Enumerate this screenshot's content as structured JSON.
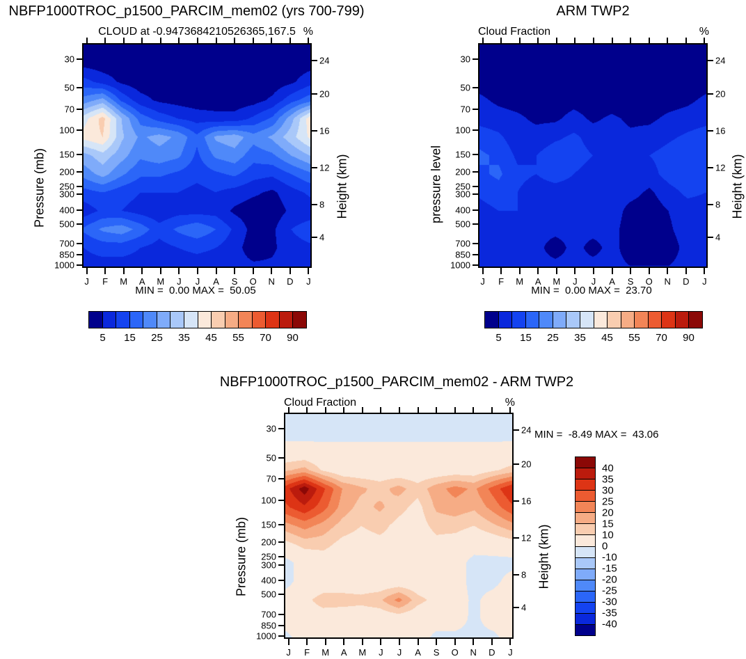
{
  "background": "#ffffff",
  "palette": [
    "#00008C",
    "#0A28DC",
    "#1443F0",
    "#2B66F8",
    "#4F89F9",
    "#7FABFA",
    "#A9C8F9",
    "#D6E5F7",
    "#FBE9DB",
    "#F9CDB0",
    "#F6AC85",
    "#F28557",
    "#EC5B31",
    "#DD3415",
    "#BB1B0D",
    "#8B0806"
  ],
  "axes": {
    "months": [
      "J",
      "F",
      "M",
      "A",
      "M",
      "J",
      "J",
      "A",
      "S",
      "O",
      "N",
      "D",
      "J"
    ],
    "pressure_ticks": [
      [
        "30",
        0.065
      ],
      [
        "50",
        0.195
      ],
      [
        "70",
        0.291
      ],
      [
        "100",
        0.387
      ],
      [
        "150",
        0.495
      ],
      [
        "200",
        0.573
      ],
      [
        "250",
        0.638
      ],
      [
        "300",
        0.675
      ],
      [
        "400",
        0.746
      ],
      [
        "500",
        0.808
      ],
      [
        "700",
        0.898
      ],
      [
        "850",
        0.947
      ],
      [
        "1000",
        0.995
      ]
    ],
    "height_ticks": [
      [
        "24",
        0.071
      ],
      [
        "20",
        0.223
      ],
      [
        "16",
        0.39
      ],
      [
        "12",
        0.554
      ],
      [
        "8",
        0.721
      ],
      [
        "4",
        0.867
      ]
    ]
  },
  "chart_data": [
    {
      "type": "heatmap",
      "title": "NBFP1000TROC_p1500_PARCIM_mem02 (yrs 700-799)",
      "subtitle": "CLOUD at -0.9473684210526365,167.5",
      "unit": "%",
      "ylabel_left": "Pressure (mb)",
      "ylabel_right": "Height (km)",
      "minmax": "MIN =  0.00 MAX =  50.05",
      "levels": [
        5,
        10,
        15,
        20,
        25,
        30,
        35,
        40,
        45,
        50,
        55,
        60,
        70,
        80,
        90
      ],
      "colorbar": {
        "orientation": "horizontal",
        "ticks": [
          [
            "5",
            1
          ],
          [
            "15",
            3
          ],
          [
            "25",
            5
          ],
          [
            "35",
            7
          ],
          [
            "45",
            9
          ],
          [
            "55",
            11
          ],
          [
            "70",
            13
          ],
          [
            "90",
            15
          ]
        ]
      },
      "values": [
        [
          2,
          2,
          2,
          2,
          2,
          2,
          2,
          2,
          2,
          2,
          2,
          2,
          2
        ],
        [
          3,
          2,
          2,
          2,
          2,
          2,
          2,
          2,
          2,
          2,
          2,
          2,
          3
        ],
        [
          12,
          8,
          4,
          2,
          2,
          2,
          2,
          2,
          2,
          2,
          2,
          4,
          8
        ],
        [
          22,
          27,
          14,
          7,
          4,
          3,
          2,
          2,
          2,
          3,
          6,
          13,
          18
        ],
        [
          38,
          47,
          30,
          18,
          13,
          10,
          8,
          7,
          7,
          11,
          16,
          28,
          43
        ],
        [
          42,
          45,
          31,
          24,
          27,
          24,
          16,
          26,
          28,
          22,
          26,
          33,
          41
        ],
        [
          28,
          33,
          27,
          21,
          23,
          21,
          14,
          21,
          23,
          17,
          19,
          25,
          30
        ],
        [
          22,
          27,
          21,
          16,
          16,
          14,
          12,
          14,
          16,
          12,
          11,
          15,
          19
        ],
        [
          13,
          15,
          12,
          10,
          10,
          10,
          8,
          10,
          8,
          6,
          4,
          8,
          11
        ],
        [
          7,
          11,
          10,
          8,
          6,
          8,
          8,
          8,
          4,
          2,
          2,
          6,
          7
        ],
        [
          16,
          21,
          23,
          18,
          12,
          16,
          19,
          15,
          9,
          3,
          4,
          10,
          13
        ],
        [
          10,
          12,
          12,
          10,
          8,
          10,
          11,
          10,
          7,
          2,
          4,
          8,
          9
        ],
        [
          8,
          8,
          8,
          8,
          8,
          8,
          8,
          8,
          7,
          6,
          6,
          8,
          8
        ]
      ]
    },
    {
      "type": "heatmap",
      "title": "ARM TWP2",
      "subtitle": "Cloud Fraction",
      "unit": "%",
      "ylabel_left": "pressure level",
      "ylabel_right": "Height (km)",
      "minmax": "MIN =  0.00 MAX =  23.70",
      "levels": [
        5,
        10,
        15,
        20,
        25,
        30,
        35,
        40,
        45,
        50,
        55,
        60,
        70,
        80,
        90
      ],
      "colorbar": {
        "orientation": "horizontal",
        "ticks": [
          [
            "5",
            1
          ],
          [
            "15",
            3
          ],
          [
            "25",
            5
          ],
          [
            "35",
            7
          ],
          [
            "45",
            9
          ],
          [
            "55",
            11
          ],
          [
            "70",
            13
          ],
          [
            "90",
            15
          ]
        ]
      },
      "values": [
        [
          2,
          2,
          2,
          2,
          2,
          2,
          2,
          2,
          2,
          2,
          2,
          2,
          2
        ],
        [
          2,
          2,
          2,
          2,
          2,
          2,
          2,
          2,
          2,
          2,
          2,
          2,
          2
        ],
        [
          3,
          2,
          2,
          2,
          2,
          2,
          2,
          2,
          2,
          2,
          2,
          2,
          3
        ],
        [
          6,
          4,
          3,
          2,
          2,
          3,
          2,
          2,
          2,
          2,
          3,
          4,
          6
        ],
        [
          8,
          7,
          6,
          4,
          4,
          7,
          4,
          6,
          4,
          4,
          6,
          7,
          8
        ],
        [
          13,
          11,
          7,
          7,
          9,
          11,
          8,
          7,
          6,
          7,
          9,
          11,
          13
        ],
        [
          16,
          14,
          9,
          10,
          13,
          12,
          10,
          8,
          8,
          10,
          12,
          14,
          13
        ],
        [
          14,
          16,
          11,
          10,
          12,
          10,
          8,
          8,
          10,
          8,
          12,
          14,
          12
        ],
        [
          11,
          13,
          10,
          8,
          8,
          8,
          8,
          8,
          7,
          4,
          8,
          11,
          10
        ],
        [
          8,
          10,
          10,
          8,
          8,
          8,
          8,
          8,
          3,
          2,
          5,
          8,
          8
        ],
        [
          8,
          8,
          8,
          7,
          7,
          7,
          7,
          7,
          2,
          2,
          4,
          8,
          8
        ],
        [
          7,
          6,
          5,
          7,
          2,
          7,
          3,
          7,
          2,
          2,
          2,
          7,
          7
        ],
        [
          7,
          7,
          7,
          7,
          7,
          7,
          7,
          7,
          5,
          5,
          5,
          7,
          7
        ]
      ]
    },
    {
      "type": "heatmap",
      "title": "NBFP1000TROC_p1500_PARCIM_mem02 - ARM TWP2",
      "subtitle": "Cloud Fraction",
      "unit": "%",
      "ylabel_left": "Pressure (mb)",
      "ylabel_right": "Height (km)",
      "minmax": "MIN =  -8.49 MAX =  43.06",
      "levels": [
        -40,
        -35,
        -30,
        -25,
        -20,
        -15,
        -10,
        0,
        10,
        15,
        20,
        25,
        30,
        35,
        40
      ],
      "colorbar": {
        "orientation": "vertical",
        "ticks": [
          [
            "40",
            1
          ],
          [
            "35",
            2
          ],
          [
            "30",
            3
          ],
          [
            "25",
            4
          ],
          [
            "20",
            5
          ],
          [
            "15",
            6
          ],
          [
            "10",
            7
          ],
          [
            "0",
            8
          ],
          [
            "-10",
            9
          ],
          [
            "-15",
            10
          ],
          [
            "-20",
            11
          ],
          [
            "-25",
            12
          ],
          [
            "-30",
            13
          ],
          [
            "-35",
            14
          ],
          [
            "-40",
            15
          ]
        ]
      },
      "values": [
        [
          -3,
          -3,
          -3,
          -3,
          -3,
          -3,
          -3,
          -3,
          -3,
          -3,
          -3,
          -3,
          -3
        ],
        [
          -3,
          -3,
          -3,
          -3,
          -3,
          -3,
          -3,
          -3,
          -3,
          -3,
          -3,
          -3,
          -3
        ],
        [
          4,
          4,
          3,
          3,
          3,
          3,
          3,
          3,
          3,
          3,
          3,
          3,
          4
        ],
        [
          14,
          17,
          9,
          5,
          5,
          5,
          5,
          5,
          5,
          6,
          6,
          9,
          12
        ],
        [
          33,
          43,
          31,
          20,
          16,
          13,
          17,
          12,
          18,
          22,
          19,
          27,
          35
        ],
        [
          29,
          34,
          27,
          18,
          13,
          16,
          12,
          8,
          16,
          18,
          16,
          22,
          29
        ],
        [
          18,
          22,
          18,
          13,
          10,
          12,
          8,
          7,
          12,
          12,
          10,
          14,
          18
        ],
        [
          8,
          12,
          12,
          8,
          7,
          8,
          7,
          5,
          8,
          7,
          4,
          5,
          7
        ],
        [
          -3,
          4,
          6,
          5,
          5,
          5,
          5,
          5,
          5,
          4,
          -3,
          -3,
          -3
        ],
        [
          -3,
          4,
          5,
          5,
          5,
          5,
          5,
          5,
          4,
          4,
          -3,
          -3,
          4
        ],
        [
          4,
          8,
          13,
          13,
          12,
          14,
          22,
          12,
          8,
          5,
          -2,
          4,
          8
        ],
        [
          4,
          6,
          6,
          5,
          5,
          5,
          6,
          5,
          4,
          4,
          -2,
          4,
          4
        ],
        [
          -2,
          4,
          4,
          4,
          4,
          4,
          4,
          4,
          -2,
          -2,
          -2,
          -2,
          4
        ]
      ]
    }
  ]
}
